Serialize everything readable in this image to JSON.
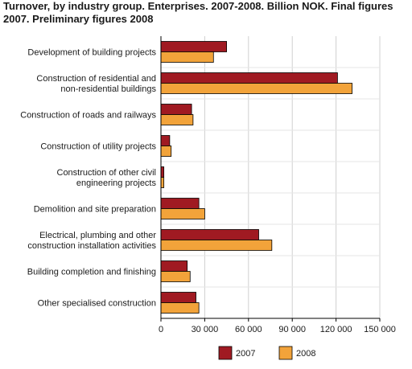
{
  "chart_data": {
    "type": "bar",
    "orientation": "horizontal",
    "title": "Turnover, by industry group. Enterprises. 2007-2008. Billion NOK. Final figures\n2007.  Preliminary figures 2008",
    "categories": [
      [
        "Development of building projects"
      ],
      [
        "Construction of residential and",
        "non-residential buildings"
      ],
      [
        "Construction of roads and railways"
      ],
      [
        "Construction of utility projects"
      ],
      [
        "Construction of other civil",
        "engineering projects"
      ],
      [
        "Demolition and site preparation"
      ],
      [
        "Electrical, plumbing and other",
        "construction installation activities"
      ],
      [
        "Building completion and finishing"
      ],
      [
        "Other specialised construction"
      ]
    ],
    "series": [
      {
        "name": "2007",
        "color": "#a01a22",
        "values": [
          45000,
          121000,
          21000,
          6000,
          2000,
          26000,
          67000,
          18000,
          24000
        ]
      },
      {
        "name": "2008",
        "color": "#f2a33a",
        "values": [
          36000,
          131000,
          22000,
          7000,
          2000,
          30000,
          76000,
          20000,
          26000
        ]
      }
    ],
    "xlim": [
      0,
      150000
    ],
    "xticks": [
      0,
      30000,
      60000,
      90000,
      120000,
      150000
    ],
    "xtick_labels": [
      "0",
      "30 000",
      "60 000",
      "90 000",
      "120 000",
      "150 000"
    ],
    "grid": "vertical",
    "legend_position": "bottom"
  }
}
